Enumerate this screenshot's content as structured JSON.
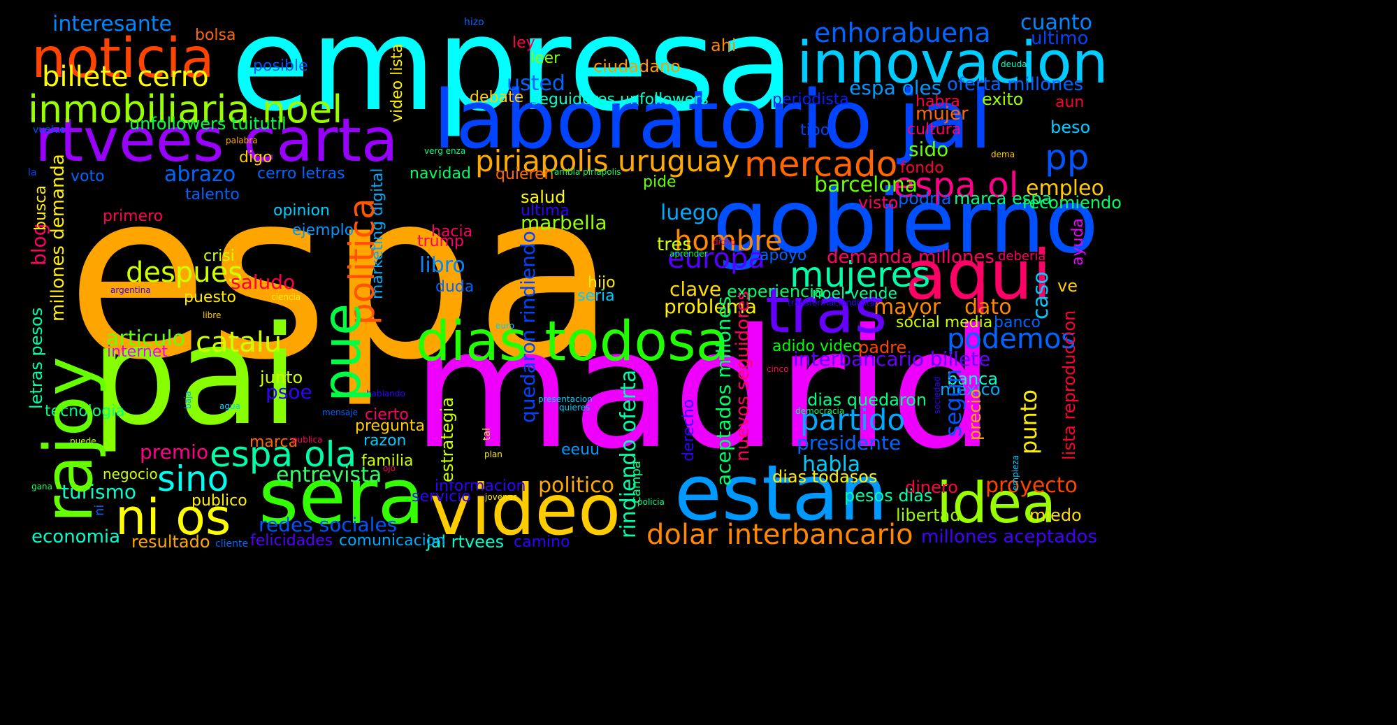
{
  "words": {
    "espa": {
      "text": "espa",
      "color": "#ffa500"
    },
    "empresa": {
      "text": "empresa",
      "color": "#00ffff"
    },
    "madrid": {
      "text": "madrid",
      "color": "#ee00ff"
    },
    "pai": {
      "text": "pai",
      "color": "#88ff00"
    },
    "laboratorio_jal": {
      "text": "laboratorio jal",
      "color": "#0044ff"
    },
    "gobierno": {
      "text": "gobierno",
      "color": "#0050ff"
    },
    "innovacion": {
      "text": "innovacion",
      "color": "#00ccff"
    },
    "rtvees_carta": {
      "text": "rtvees carta",
      "color": "#9900ff"
    },
    "noticia": {
      "text": "noticia",
      "color": "#ff4400"
    },
    "sera": {
      "text": "sera",
      "color": "#33ff00"
    },
    "video": {
      "text": "video",
      "color": "#ffcc00"
    },
    "estan": {
      "text": "estan",
      "color": "#0099ff"
    },
    "aqui": {
      "text": "aqui",
      "color": "#ff0066"
    },
    "tras": {
      "text": "tras",
      "color": "#6600ff"
    },
    "dias_todosa": {
      "text": "dias todosa",
      "color": "#22ff00"
    },
    "rajoy": {
      "text": "rajoy",
      "color": "#66ff00"
    },
    "idea": {
      "text": "idea",
      "color": "#99ff00"
    },
    "ni_os": {
      "text": "ni os",
      "color": "#ffff00"
    },
    "inmobiliaria_noel": {
      "text": "inmobiliaria noel",
      "color": "#99ff00"
    },
    "politica": {
      "text": "politica",
      "color": "#ff5500"
    },
    "pue": {
      "text": "pue",
      "color": "#00ff44"
    },
    "mercado": {
      "text": "mercado",
      "color": "#ff6600"
    },
    "piriapolis_uruguay": {
      "text": "piriapolis uruguay",
      "color": "#ffaa00"
    },
    "espa_ol": {
      "text": "espa ol",
      "color": "#ff0088"
    },
    "enhorabuena": {
      "text": "enhorabuena",
      "color": "#0066ff"
    },
    "billete_cerro": {
      "text": "billete cerro",
      "color": "#ffff00"
    },
    "pp": {
      "text": "pp",
      "color": "#0055ff"
    },
    "mujeres": {
      "text": "mujeres",
      "color": "#00ffaa"
    },
    "hombre": {
      "text": "hombre",
      "color": "#ff8800"
    },
    "despues": {
      "text": "despues",
      "color": "#ccff00"
    },
    "europa": {
      "text": "europa",
      "color": "#5500ff"
    },
    "podemos": {
      "text": "podemos",
      "color": "#0066ff"
    },
    "partido": {
      "text": "partido",
      "color": "#00aaff"
    },
    "espa_ola": {
      "text": "espa ola",
      "color": "#00ffaa"
    },
    "catalu": {
      "text": "catalu",
      "color": "#ccff00"
    },
    "sino": {
      "text": "sino",
      "color": "#00ffee"
    },
    "dolar_interbancario": {
      "text": "dolar interbancario",
      "color": "#ff8800"
    },
    "interbancario_billete": {
      "text": "interbancario billete",
      "color": "#6600ff"
    },
    "presidente": {
      "text": "presidente",
      "color": "#0066ff"
    },
    "entrevista": {
      "text": "entrevista",
      "color": "#33ff66"
    },
    "redes_sociales": {
      "text": "redes sociales",
      "color": "#0055ff"
    },
    "politico": {
      "text": "politico",
      "color": "#ffaa00"
    },
    "proyecto": {
      "text": "proyecto",
      "color": "#ff4400"
    },
    "marbella": {
      "text": "marbella",
      "color": "#99ff00"
    },
    "libro": {
      "text": "libro",
      "color": "#0088ff"
    },
    "luego": {
      "text": "luego",
      "color": "#00aaff"
    },
    "problema": {
      "text": "problema",
      "color": "#ffee00"
    },
    "abrazo": {
      "text": "abrazo",
      "color": "#0066ff"
    },
    "unfollowers_tuitutil": {
      "text": "unfollowers tuitutil",
      "color": "#00ff44"
    },
    "interesante": {
      "text": "interesante",
      "color": "#0088ff"
    },
    "cuanto": {
      "text": "cuanto",
      "color": "#0088ff"
    },
    "ultimo": {
      "text": "ultimo",
      "color": "#0044ff"
    },
    "espa_oles": {
      "text": "espa oles",
      "color": "#0099ff"
    },
    "oferta_millones": {
      "text": "oferta millones",
      "color": "#0066ff"
    },
    "usted": {
      "text": "usted",
      "color": "#0066ff"
    },
    "seguidores_unfollowers": {
      "text": "seguidores unfollowers",
      "color": "#00ffcc"
    },
    "periodista": {
      "text": "periodista",
      "color": "#0022ff"
    },
    "exito": {
      "text": "exito",
      "color": "#99ff00"
    },
    "habra": {
      "text": "habra",
      "color": "#ff0044"
    },
    "aun": {
      "text": "aun",
      "color": "#ff0033"
    },
    "mujer": {
      "text": "mujer",
      "color": "#ff6600"
    },
    "cultura": {
      "text": "cultura",
      "color": "#ff0066"
    },
    "beso": {
      "text": "beso",
      "color": "#00ccff"
    },
    "tipo": {
      "text": "tipo",
      "color": "#0044ff"
    },
    "sido": {
      "text": "sido",
      "color": "#66ff00"
    },
    "empleo": {
      "text": "empleo",
      "color": "#ffcc00"
    },
    "barcelona": {
      "text": "barcelona",
      "color": "#66ff00"
    },
    "visto": {
      "text": "visto",
      "color": "#ff0066"
    },
    "podria": {
      "text": "podria",
      "color": "#0066ff"
    },
    "marca_espa": {
      "text": "marca espa",
      "color": "#00ff88"
    },
    "recomiendo": {
      "text": "recomiendo",
      "color": "#00ff66"
    },
    "fondo": {
      "text": "fondo",
      "color": "#ff0033"
    },
    "demanda_millones": {
      "text": "demanda millones",
      "color": "#ff0066"
    },
    "apoyo": {
      "text": "apoyo",
      "color": "#0066ff"
    },
    "deberia": {
      "text": "deberia",
      "color": "#ff0066"
    },
    "ayuda": {
      "text": "ayuda",
      "color": "#ee00ff"
    },
    "experiencia": {
      "text": "experiencia",
      "color": "#00ff66"
    },
    "clave": {
      "text": "clave",
      "color": "#ffdd00"
    },
    "noel_vende": {
      "text": "noel vende",
      "color": "#00ff99"
    },
    "ve": {
      "text": "ve",
      "color": "#ffcc00"
    },
    "mayor": {
      "text": "mayor",
      "color": "#ff8800"
    },
    "dato": {
      "text": "dato",
      "color": "#ff8800"
    },
    "caso": {
      "text": "caso",
      "color": "#00ccff"
    },
    "social_media": {
      "text": "social media",
      "color": "#ccff00"
    },
    "banco": {
      "text": "banco",
      "color": "#0066ff"
    },
    "adido_video": {
      "text": "adido video",
      "color": "#00ff00"
    },
    "padre": {
      "text": "padre",
      "color": "#ff4400"
    },
    "lista_reproduccion": {
      "text": "lista reproduccion",
      "color": "#ff0033"
    },
    "banca": {
      "text": "banca",
      "color": "#00ffcc"
    },
    "mexico": {
      "text": "mexico",
      "color": "#00aaff"
    },
    "segun": {
      "text": "segun",
      "color": "#0055ff"
    },
    "dias_quedaron": {
      "text": "dias quedaron",
      "color": "#00ff88"
    },
    "habla": {
      "text": "habla",
      "color": "#00ccff"
    },
    "dias_todasos": {
      "text": "dias todasos",
      "color": "#ffee00"
    },
    "precio": {
      "text": "precio",
      "color": "#ffaa00"
    },
    "punto": {
      "text": "punto",
      "color": "#ffee00"
    },
    "dinero": {
      "text": "dinero",
      "color": "#ff0044"
    },
    "pesos_dias": {
      "text": "pesos dias",
      "color": "#00ffaa"
    },
    "libertad": {
      "text": "libertad",
      "color": "#99ff00"
    },
    "miedo": {
      "text": "miedo",
      "color": "#ffdd00"
    },
    "millones_aceptados": {
      "text": "millones aceptados",
      "color": "#4400ff"
    },
    "jal_rtvees": {
      "text": "jal rtvees",
      "color": "#00ffcc"
    },
    "camino": {
      "text": "camino",
      "color": "#3300ff"
    },
    "comunicacion": {
      "text": "comunicacion",
      "color": "#00aaff"
    },
    "felicidades": {
      "text": "felicidades",
      "color": "#5500ff"
    },
    "resultado": {
      "text": "resultado",
      "color": "#ffaa00"
    },
    "cliente": {
      "text": "cliente",
      "color": "#0066ff"
    },
    "economia": {
      "text": "economia",
      "color": "#00ffcc"
    },
    "publico": {
      "text": "publico",
      "color": "#ffee00"
    },
    "turismo": {
      "text": "turismo",
      "color": "#00ffcc"
    },
    "negocio": {
      "text": "negocio",
      "color": "#ccff00"
    },
    "premio": {
      "text": "premio",
      "color": "#ff0088"
    },
    "tecnologia": {
      "text": "tecnologia",
      "color": "#00ff88"
    },
    "psoe": {
      "text": "psoe",
      "color": "#3300ff"
    },
    "junto": {
      "text": "junto",
      "color": "#ccff00"
    },
    "articulo": {
      "text": "articulo",
      "color": "#66ff00"
    },
    "internet": {
      "text": "internet",
      "color": "#ee00ff"
    },
    "puesto": {
      "text": "puesto",
      "color": "#ffee00"
    },
    "saludo": {
      "text": "saludo",
      "color": "#ff0044"
    },
    "crisi": {
      "text": "crisi",
      "color": "#ccff00"
    },
    "ejemplo": {
      "text": "ejemplo",
      "color": "#0099ff"
    },
    "opinion": {
      "text": "opinion",
      "color": "#00ccff"
    },
    "primero": {
      "text": "primero",
      "color": "#ff0055"
    },
    "talento": {
      "text": "talento",
      "color": "#0066ff"
    },
    "voto": {
      "text": "voto",
      "color": "#0066ff"
    },
    "cerro_letras": {
      "text": "cerro letras",
      "color": "#0066ff"
    },
    "digo": {
      "text": "digo",
      "color": "#ffcc00"
    },
    "bolsa": {
      "text": "bolsa",
      "color": "#ff6600"
    },
    "ley": {
      "text": "ley",
      "color": "#ff0044"
    },
    "leer": {
      "text": "leer",
      "color": "#88ff00"
    },
    "ahi": {
      "text": "ahi",
      "color": "#ff8800"
    },
    "ciudadano": {
      "text": "ciudadano",
      "color": "#ff9900"
    },
    "posible": {
      "text": "posible",
      "color": "#0055ff"
    },
    "hizo": {
      "text": "hizo",
      "color": "#0066ff"
    },
    "debate": {
      "text": "debate",
      "color": "#ffcc00"
    },
    "navidad": {
      "text": "navidad",
      "color": "#00ff66"
    },
    "quieren": {
      "text": "quieren",
      "color": "#ff6600"
    },
    "rambla_piriapolis": {
      "text": "rambla piriapolis",
      "color": "#00ff66"
    },
    "pide": {
      "text": "pide",
      "color": "#66ff00"
    },
    "salud": {
      "text": "salud",
      "color": "#ffff00"
    },
    "ultima": {
      "text": "ultima",
      "color": "#3300ff"
    },
    "hacia": {
      "text": "hacia",
      "color": "#ff0066"
    },
    "trump": {
      "text": "trump",
      "color": "#ff0066"
    },
    "duda": {
      "text": "duda",
      "color": "#0066ff"
    },
    "hijo": {
      "text": "hijo",
      "color": "#ffee00"
    },
    "seria": {
      "text": "seria",
      "color": "#00ccff"
    },
    "tres": {
      "text": "tres",
      "color": "#ccff00"
    },
    "aprender": {
      "text": "aprender",
      "color": "#00ff44"
    },
    "dicho": {
      "text": "dicho",
      "color": "#ff0044"
    },
    "transformaciondigital": {
      "text": "transformaciondigital",
      "color": "#3300ff"
    },
    "deuda": {
      "text": "deuda",
      "color": "#00ffcc"
    },
    "dema": {
      "text": "dema",
      "color": "#ffcc00"
    },
    "verg_enza": {
      "text": "verg enza",
      "color": "#00ff88"
    },
    "palabra": {
      "text": "palabra",
      "color": "#ffaa00"
    },
    "vuelve": {
      "text": "vuelve",
      "color": "#0055ff"
    },
    "la": {
      "text": "la",
      "color": "#0044ff"
    },
    "argentina": {
      "text": "argentina",
      "color": "#3300ff"
    },
    "ciencia": {
      "text": "ciencia",
      "color": "#ffee00"
    },
    "libre": {
      "text": "libre",
      "color": "#ffcc00"
    },
    "euro": {
      "text": "euro",
      "color": "#00ccff"
    },
    "cinco": {
      "text": "cinco",
      "color": "#ff0055"
    },
    "hablando": {
      "text": "hablando",
      "color": "#3300ff"
    },
    "agua": {
      "text": "agua",
      "color": "#00ccff"
    },
    "mensaje": {
      "text": "mensaje",
      "color": "#0066ff"
    },
    "cierto": {
      "text": "cierto",
      "color": "#ff0066"
    },
    "pregunta": {
      "text": "pregunta",
      "color": "#ffcc00"
    },
    "razon": {
      "text": "razon",
      "color": "#00ccff"
    },
    "marca": {
      "text": "marca",
      "color": "#ff6600"
    },
    "publica": {
      "text": "publica",
      "color": "#ff0066"
    },
    "familia": {
      "text": "familia",
      "color": "#ccff00"
    },
    "ojo": {
      "text": "ojo",
      "color": "#ff0055"
    },
    "informacion": {
      "text": "informacion",
      "color": "#3300ff"
    },
    "servicio": {
      "text": "servicio",
      "color": "#3300ff"
    },
    "jovenes": {
      "text": "jovenes",
      "color": "#ffee00"
    },
    "presentacion": {
      "text": "presentacion",
      "color": "#00ccff"
    },
    "quieres": {
      "text": "quieres",
      "color": "#00ccff"
    },
    "plan": {
      "text": "plan",
      "color": "#ffee00"
    },
    "eeuu": {
      "text": "eeuu",
      "color": "#0099ff"
    },
    "policia": {
      "text": "policia",
      "color": "#00ff88"
    },
    "democracia": {
      "text": "democracia",
      "color": "#00ff66"
    },
    "puede": {
      "text": "puede",
      "color": "#ccff00"
    },
    "gana": {
      "text": "gana",
      "color": "#00ff66"
    },
    "millones_demanda": {
      "text": "millones demanda",
      "color": "#ffee00"
    },
    "blog": {
      "text": "blog",
      "color": "#ff0066"
    },
    "busca": {
      "text": "busca",
      "color": "#ffee00"
    },
    "letras_pesos": {
      "text": "letras pesos",
      "color": "#00ffaa"
    },
    "ni": {
      "text": "ni",
      "color": "#0066ff"
    },
    "baja": {
      "text": "baja",
      "color": "#00aaff"
    },
    "video_lista": {
      "text": "video lista",
      "color": "#ffee00"
    },
    "marketing_digital": {
      "text": "marketing digital",
      "color": "#00aaff"
    },
    "quedaron_rindiendo": {
      "text": "quedaron rindiendo",
      "color": "#0044ff"
    },
    "rindiendo_oferta": {
      "text": "rindiendo oferta",
      "color": "#00ffaa"
    },
    "aceptados_millones": {
      "text": "aceptados millones",
      "color": "#00ff66"
    },
    "nuevos_seguidores": {
      "text": "nuevos seguidores",
      "color": "#ff0066"
    },
    "estrategia": {
      "text": "estrategia",
      "color": "#ccff00"
    },
    "tal": {
      "text": "tal",
      "color": "#ffee00"
    },
    "campa": {
      "text": "campa",
      "color": "#00ff88"
    },
    "derecho": {
      "text": "derecho",
      "color": "#3300ff"
    },
    "sociedad": {
      "text": "sociedad",
      "color": "#3300ff"
    },
    "empieza": {
      "text": "empieza",
      "color": "#00ccff"
    }
  }
}
